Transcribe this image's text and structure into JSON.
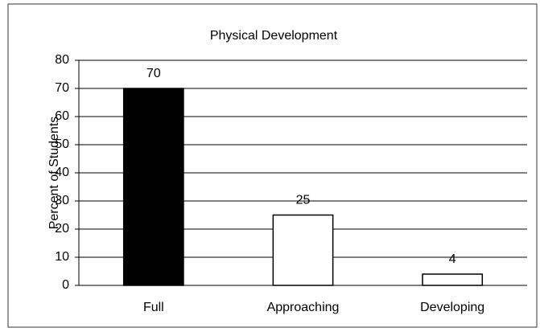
{
  "chart_data": {
    "type": "bar",
    "title": "Physical Development",
    "y_label": "Percent of Students",
    "categories": [
      "Full",
      "Approaching",
      "Developing"
    ],
    "values": [
      70,
      25,
      4
    ],
    "colors": [
      "#000000",
      "#ffffff",
      "#ffffff"
    ],
    "ylim": [
      0,
      80
    ],
    "yticks": [
      0,
      10,
      20,
      30,
      40,
      50,
      60,
      70,
      80
    ],
    "grid": true
  }
}
